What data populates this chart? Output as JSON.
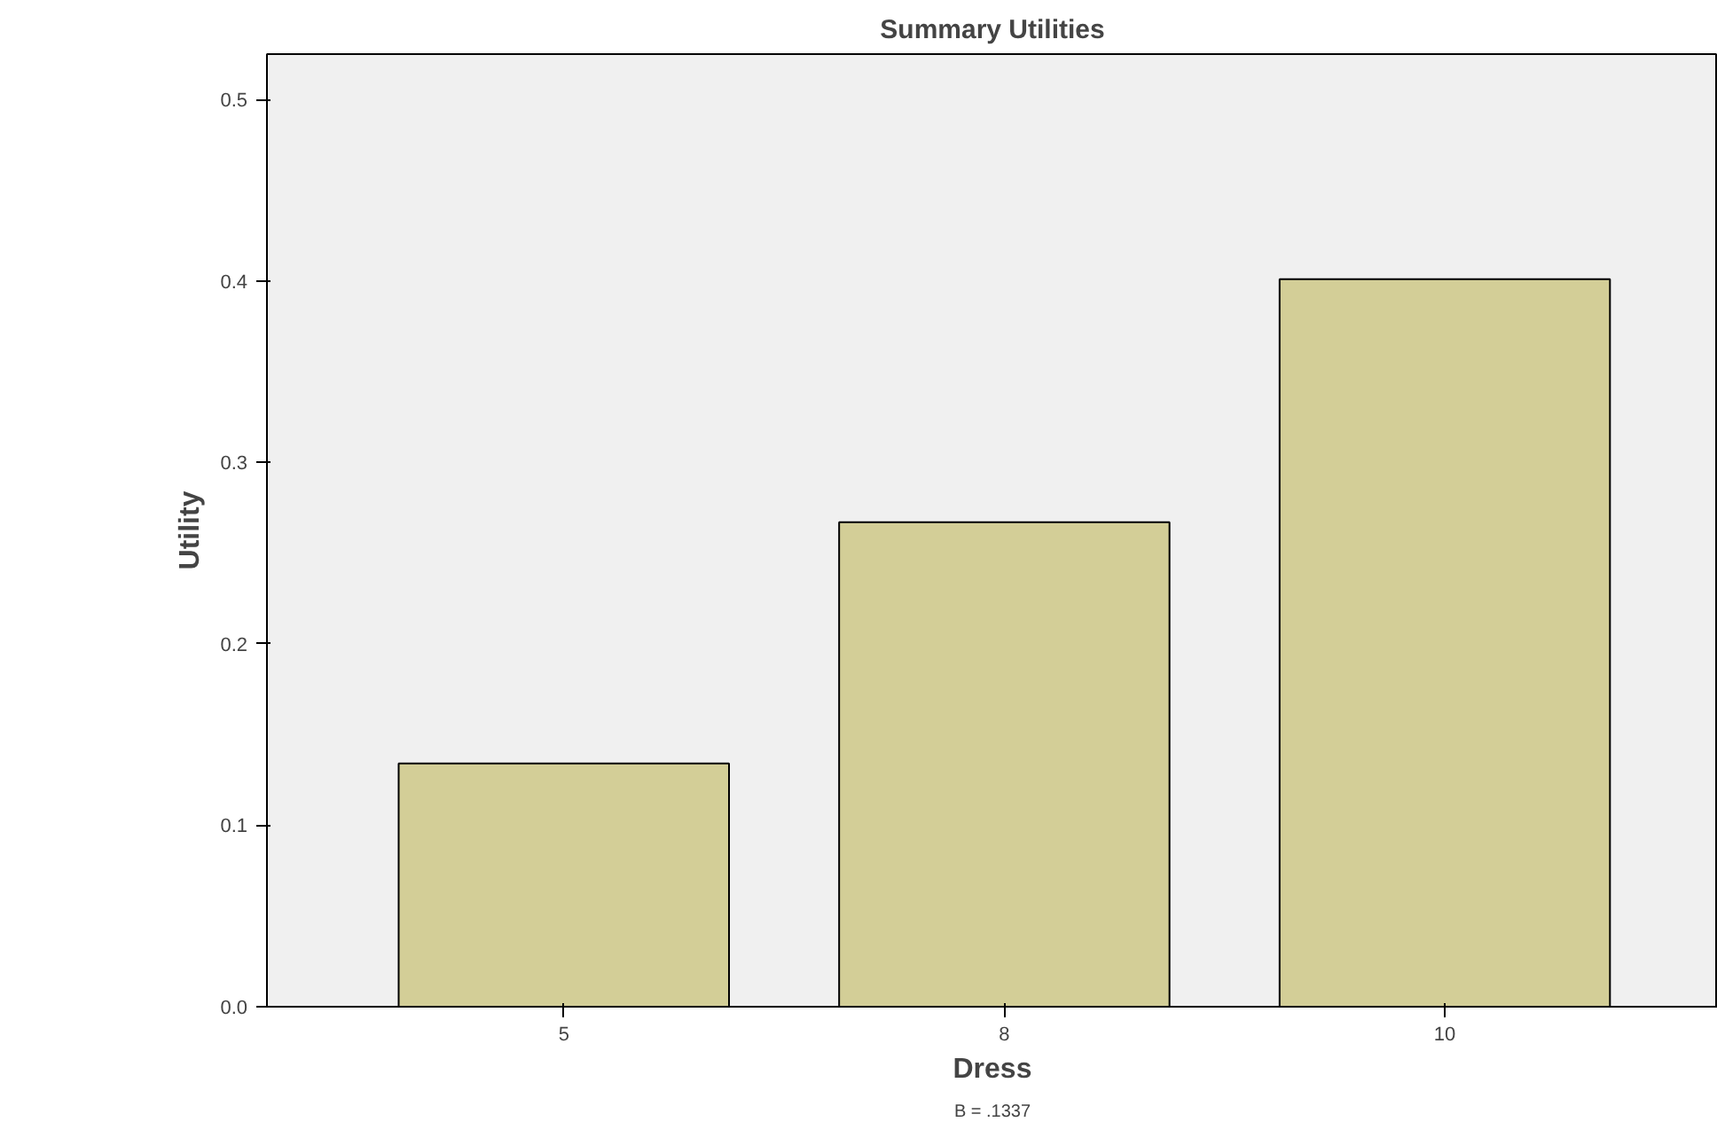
{
  "chart_data": {
    "type": "bar",
    "title": "Summary Utilities",
    "xlabel": "Dress",
    "ylabel": "Utility",
    "categories": [
      "5",
      "8",
      "10"
    ],
    "values": [
      0.134,
      0.267,
      0.401
    ],
    "color": "#d3ce97",
    "ylim": [
      0,
      0.525
    ],
    "yticks": [
      {
        "value": 0,
        "label": "0.0"
      },
      0.1,
      0.2,
      0.3,
      0.4,
      0.5
    ],
    "grid": false,
    "annotations": [
      "B = .1337"
    ]
  }
}
